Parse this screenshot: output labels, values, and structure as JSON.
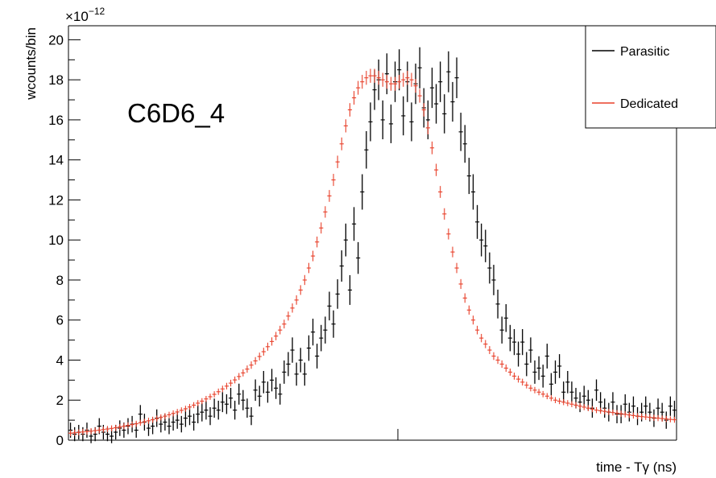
{
  "chart_data": {
    "type": "scatter",
    "title": "",
    "xlabel": "time - Tγ (ns)",
    "ylabel": "wcounts/bin",
    "exponent_prefix": "×10",
    "exponent_power": "−12",
    "annotation": "C6D6_4",
    "ylim": [
      0,
      20.7
    ],
    "yticks": [
      0,
      2,
      4,
      6,
      8,
      10,
      12,
      14,
      16,
      18,
      20
    ],
    "ytick_labels": [
      "0",
      "2",
      "4",
      "6",
      "8",
      "10",
      "12",
      "14",
      "16",
      "18",
      "20"
    ],
    "xlim": [
      0,
      148
    ],
    "legend": {
      "position": "top-right"
    },
    "colors": {
      "Parasitic": "#000000",
      "Dedicated": "#e8402a"
    },
    "series": [
      {
        "name": "Parasitic",
        "y": [
          0.5,
          0.3,
          0.4,
          0.3,
          0.5,
          0.2,
          0.3,
          0.7,
          0.4,
          0.3,
          0.2,
          0.4,
          0.6,
          0.5,
          0.7,
          0.8,
          0.5,
          1.3,
          0.9,
          0.6,
          0.7,
          1.1,
          0.8,
          0.9,
          0.7,
          0.9,
          1.0,
          0.8,
          1.1,
          1.2,
          0.9,
          1.3,
          1.4,
          1.5,
          1.2,
          1.6,
          1.5,
          1.9,
          1.8,
          2.1,
          1.5,
          2.3,
          2.0,
          1.6,
          1.2,
          2.5,
          2.2,
          2.9,
          2.4,
          3.0,
          2.6,
          2.3,
          3.4,
          3.8,
          4.5,
          3.3,
          4.0,
          3.3,
          4.6,
          5.4,
          4.2,
          5.1,
          5.5,
          6.7,
          5.8,
          7.3,
          8.7,
          10.0,
          7.5,
          10.8,
          9.1,
          12.4,
          14.5,
          15.9,
          17.5,
          18.0,
          16.0,
          18.3,
          15.8,
          17.9,
          18.5,
          16.2,
          17.9,
          15.9,
          17.8,
          18.6,
          16.6,
          16.0,
          17.6,
          16.8,
          17.9,
          16.3,
          18.4,
          16.9,
          18.1,
          15.4,
          14.8,
          13.2,
          12.4,
          10.9,
          10.0,
          9.7,
          8.6,
          8.0,
          6.8,
          5.5,
          6.1,
          5.1,
          4.9,
          4.3,
          4.9,
          3.8,
          4.5,
          3.4,
          3.6,
          3.2,
          4.2,
          2.8,
          3.4,
          3.7,
          2.4,
          2.9,
          2.4,
          2.1,
          1.9,
          2.2,
          2.0,
          1.6,
          2.5,
          1.9,
          1.6,
          1.4,
          1.9,
          1.3,
          1.3,
          1.8,
          1.4,
          1.7,
          1.2,
          1.4,
          1.7,
          1.4,
          1.1,
          1.6,
          1.4,
          1.0,
          1.7,
          1.5
        ]
      },
      {
        "name": "Dedicated",
        "y": [
          0.35,
          0.37,
          0.39,
          0.41,
          0.43,
          0.45,
          0.48,
          0.5,
          0.53,
          0.56,
          0.59,
          0.62,
          0.66,
          0.7,
          0.74,
          0.78,
          0.82,
          0.87,
          0.92,
          0.97,
          1.02,
          1.08,
          1.14,
          1.2,
          1.27,
          1.34,
          1.41,
          1.49,
          1.57,
          1.66,
          1.75,
          1.85,
          1.95,
          2.06,
          2.17,
          2.29,
          2.42,
          2.56,
          2.7,
          2.85,
          3.01,
          3.18,
          3.36,
          3.55,
          3.75,
          3.96,
          4.18,
          4.42,
          4.67,
          4.93,
          5.2,
          5.5,
          5.8,
          6.2,
          6.6,
          7.0,
          7.5,
          8.0,
          8.6,
          9.2,
          9.9,
          10.6,
          11.4,
          12.2,
          13.0,
          13.9,
          14.8,
          15.7,
          16.5,
          17.1,
          17.6,
          17.9,
          18.1,
          18.2,
          18.2,
          18.1,
          18.0,
          17.9,
          17.8,
          17.8,
          17.9,
          18.0,
          18.1,
          18.0,
          17.7,
          17.2,
          16.5,
          15.6,
          14.6,
          13.5,
          12.4,
          11.3,
          10.3,
          9.4,
          8.6,
          7.8,
          7.1,
          6.5,
          6.0,
          5.5,
          5.1,
          4.8,
          4.5,
          4.2,
          4.0,
          3.8,
          3.6,
          3.4,
          3.2,
          3.05,
          2.9,
          2.75,
          2.6,
          2.5,
          2.4,
          2.3,
          2.2,
          2.1,
          2.0,
          1.95,
          1.9,
          1.85,
          1.8,
          1.75,
          1.7,
          1.65,
          1.6,
          1.55,
          1.5,
          1.47,
          1.44,
          1.41,
          1.38,
          1.35,
          1.32,
          1.29,
          1.26,
          1.23,
          1.2,
          1.18,
          1.16,
          1.14,
          1.12,
          1.1,
          1.08,
          1.06,
          1.04,
          1.02
        ]
      }
    ]
  }
}
